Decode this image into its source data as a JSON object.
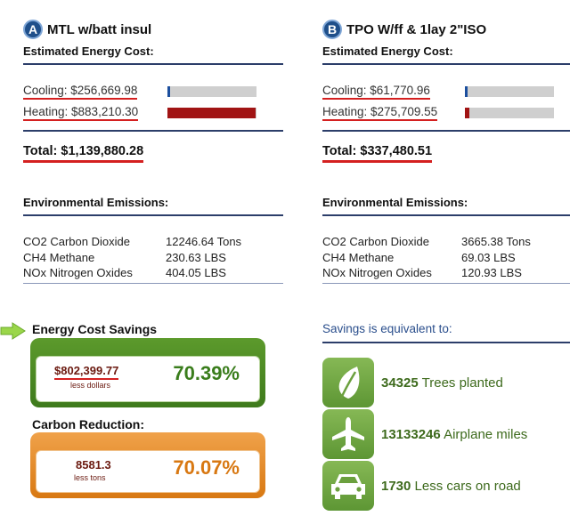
{
  "colors": {
    "accent_blue": "#1f4f8a",
    "underline_red": "#d42020",
    "cooling_bar": "#1c4f9e",
    "heating_bar": "#a11414",
    "bar_track": "#cfcfcf",
    "savings_green": "#3a7d1c",
    "carbon_orange": "#d87812"
  },
  "option_a": {
    "badge": "A",
    "title": "MTL w/batt insul",
    "subtitle": "Estimated Energy Cost:",
    "cooling": {
      "label": "Cooling: $256,669.98",
      "fill_fraction": 0.03
    },
    "heating": {
      "label": "Heating: $883,210.30",
      "fill_fraction": 0.99
    },
    "total": "Total: $1,139,880.28",
    "emissions_title": "Environmental Emissions:",
    "emissions": [
      {
        "name": "CO2 Carbon Dioxide",
        "value": "12246.64 Tons"
      },
      {
        "name": "CH4 Methane",
        "value": "230.63 LBS"
      },
      {
        "name": "NOx Nitrogen Oxides",
        "value": "404.05 LBS"
      }
    ]
  },
  "option_b": {
    "badge": "B",
    "title": "TPO W/ff & 1lay 2\"ISO",
    "subtitle": "Estimated Energy Cost:",
    "cooling": {
      "label": "Cooling: $61,770.96",
      "fill_fraction": 0.03
    },
    "heating": {
      "label": "Heating: $275,709.55",
      "fill_fraction": 0.05
    },
    "total": "Total: $337,480.51",
    "emissions_title": "Environmental Emissions:",
    "emissions": [
      {
        "name": "CO2 Carbon Dioxide",
        "value": "3665.38 Tons"
      },
      {
        "name": "CH4 Methane",
        "value": "69.03 LBS"
      },
      {
        "name": "NOx Nitrogen Oxides",
        "value": "120.93 LBS"
      }
    ]
  },
  "savings": {
    "title": "Energy Cost Savings",
    "amount": "$802,399.77",
    "amount_sub": "less dollars",
    "percent": "70.39%"
  },
  "carbon": {
    "title": "Carbon Reduction:",
    "amount": "8581.3",
    "amount_sub": "less tons",
    "percent": "70.07%"
  },
  "equivalent": {
    "title": "Savings is equivalent to:",
    "items": [
      {
        "icon": "leaf-icon",
        "number": "34325",
        "label": "Trees planted"
      },
      {
        "icon": "airplane-icon",
        "number": "13133246",
        "label": "Airplane miles"
      },
      {
        "icon": "car-icon",
        "number": "1730",
        "label": "Less cars on road"
      }
    ]
  }
}
